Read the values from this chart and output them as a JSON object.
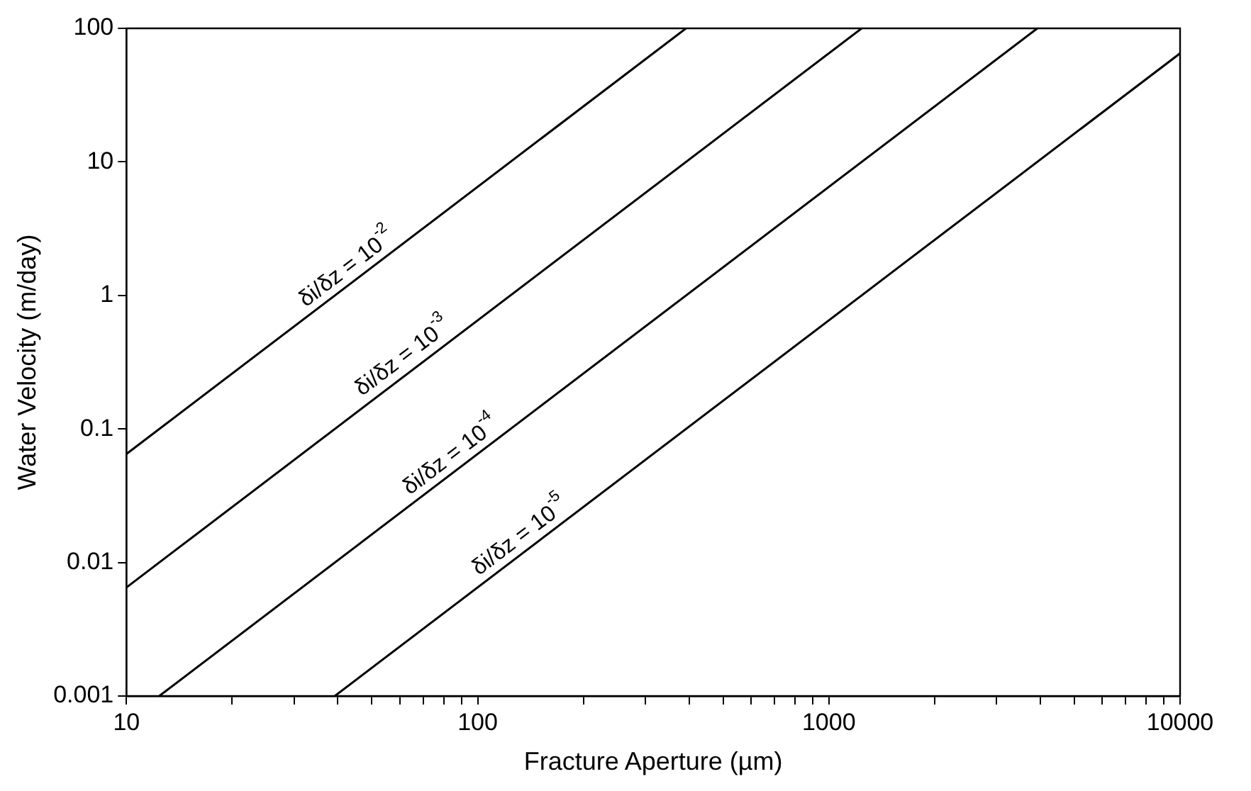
{
  "chart_data": {
    "type": "line",
    "xlabel": "Fracture Aperture (µm)",
    "ylabel": "Water Velocity (m/day)",
    "log": "xy",
    "xlim": [
      10,
      10000
    ],
    "ylim": [
      0.001,
      100
    ],
    "xticks": [
      10,
      {
        "value": 20,
        "label": null
      },
      {
        "value": 30,
        "label": null
      },
      {
        "value": 40,
        "label": null
      },
      {
        "value": 50,
        "label": null
      },
      {
        "value": 60,
        "label": null
      },
      {
        "value": 70,
        "label": null
      },
      {
        "value": 80,
        "label": null
      },
      {
        "value": 90,
        "label": null
      },
      100,
      {
        "value": 200,
        "label": null
      },
      {
        "value": 300,
        "label": null
      },
      {
        "value": 400,
        "label": null
      },
      {
        "value": 500,
        "label": null
      },
      {
        "value": 600,
        "label": null
      },
      {
        "value": 700,
        "label": null
      },
      {
        "value": 800,
        "label": null
      },
      {
        "value": 900,
        "label": null
      },
      1000,
      {
        "value": 2000,
        "label": null
      },
      {
        "value": 3000,
        "label": null
      },
      {
        "value": 4000,
        "label": null
      },
      {
        "value": 5000,
        "label": null
      },
      {
        "value": 6000,
        "label": null
      },
      {
        "value": 7000,
        "label": null
      },
      {
        "value": 8000,
        "label": null
      },
      {
        "value": 9000,
        "label": null
      },
      10000
    ],
    "yticks": [
      0.001,
      0.01,
      0.1,
      1,
      10,
      100
    ],
    "grid": false,
    "legend": false,
    "marker": "none",
    "line_style": "solid",
    "series": [
      {
        "color": "#000000",
        "x": [
          10,
          392
        ],
        "values": [
          0.065,
          100
        ]
      },
      {
        "color": "#000000",
        "x": [
          10,
          1240
        ],
        "values": [
          0.0065,
          100
        ]
      },
      {
        "color": "#000000",
        "x": [
          12.4,
          3922
        ],
        "values": [
          0.001,
          100
        ]
      },
      {
        "color": "#000000",
        "x": [
          39.2,
          10000
        ],
        "values": [
          0.001,
          65
        ]
      }
    ],
    "annotations": [
      {
        "text": "δi/δz = 10$^{-2}$",
        "x": 45,
        "y": 1.3
      },
      {
        "text": "δi/δz = 10$^{-3}$",
        "x": 65,
        "y": 0.28
      },
      {
        "text": "δi/δz = 10$^{-4}$",
        "x": 89,
        "y": 0.051
      },
      {
        "text": "δi/δz = 10$^{-5}$",
        "x": 140,
        "y": 0.0127
      }
    ]
  }
}
